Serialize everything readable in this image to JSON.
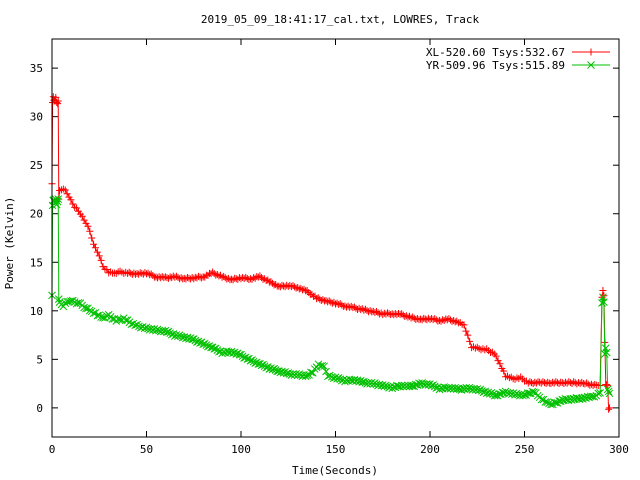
{
  "chart_data": {
    "type": "line",
    "title": "2019_05_09_18:41:17_cal.txt, LOWRES, Track",
    "xlabel": "Time(Seconds)",
    "ylabel": "Power (Kelvin)",
    "xlim": [
      0,
      300
    ],
    "ylim": [
      -3,
      38
    ],
    "xticks": [
      0,
      50,
      100,
      150,
      200,
      250,
      300
    ],
    "yticks": [
      0,
      5,
      10,
      15,
      20,
      25,
      30,
      35
    ],
    "grid": false,
    "legend_position": "top-right",
    "series": [
      {
        "name": "XL-520.60 Tsys:532.67",
        "color": "#ff0000",
        "marker": "plus",
        "x": [
          0,
          0.3,
          0.7,
          1,
          1.5,
          2,
          2.5,
          3,
          3.3,
          3.6,
          4,
          5,
          7,
          9,
          11,
          13,
          15,
          17,
          19,
          21,
          23,
          25,
          27,
          30,
          33,
          36,
          40,
          45,
          50,
          55,
          60,
          65,
          70,
          75,
          80,
          85,
          90,
          95,
          100,
          105,
          110,
          115,
          120,
          125,
          130,
          135,
          140,
          145,
          150,
          155,
          160,
          165,
          170,
          175,
          180,
          185,
          190,
          195,
          200,
          205,
          210,
          215,
          218,
          222,
          226,
          230,
          234,
          237,
          240,
          244,
          248,
          252,
          258,
          264,
          270,
          276,
          282,
          288,
          290,
          291,
          291.5,
          292,
          292.5,
          293,
          293.5,
          294,
          294.5,
          295
        ],
        "y": [
          23,
          31.5,
          32,
          31.8,
          31.6,
          31.9,
          31.5,
          31.3,
          31.7,
          21.5,
          22.3,
          22.5,
          22.4,
          21.8,
          21,
          20.5,
          20,
          19.3,
          18.8,
          17.5,
          16.4,
          15.7,
          14.5,
          14,
          13.9,
          14,
          13.9,
          13.8,
          13.9,
          13.5,
          13.4,
          13.5,
          13.3,
          13.4,
          13.5,
          13.9,
          13.5,
          13.2,
          13.4,
          13.3,
          13.5,
          13,
          12.5,
          12.6,
          12.4,
          12,
          11.3,
          11,
          10.8,
          10.5,
          10.3,
          10.1,
          9.9,
          9.7,
          9.7,
          9.6,
          9.3,
          9.1,
          9.2,
          9.0,
          9.1,
          8.8,
          8.5,
          6.3,
          6.1,
          6.0,
          5.6,
          4.5,
          3.3,
          3.0,
          3.1,
          2.6,
          2.6,
          2.6,
          2.6,
          2.6,
          2.5,
          2.3,
          2.4,
          11.4,
          12.0,
          11.6,
          6.7,
          2.5,
          2.4,
          2.2,
          -0.1,
          0
        ]
      },
      {
        "name": "YR-509.96 Tsys:515.89",
        "color": "#00c000",
        "marker": "cross",
        "x": [
          0,
          0.3,
          0.7,
          1,
          1.5,
          2,
          2.5,
          3,
          3.3,
          3.6,
          4,
          6,
          8,
          10,
          12,
          15,
          18,
          21,
          24,
          27,
          30,
          34,
          38,
          42,
          46,
          50,
          55,
          60,
          65,
          70,
          75,
          80,
          85,
          90,
          95,
          100,
          105,
          110,
          115,
          120,
          125,
          130,
          135,
          138,
          141,
          144,
          146,
          150,
          155,
          160,
          165,
          170,
          175,
          180,
          185,
          190,
          195,
          200,
          205,
          210,
          215,
          220,
          225,
          230,
          235,
          240,
          245,
          250,
          255,
          258,
          262,
          265,
          270,
          275,
          280,
          285,
          288,
          290,
          291,
          291.5,
          292,
          292.5,
          293,
          293.5,
          294,
          294.5,
          295
        ],
        "y": [
          11.5,
          20.9,
          21.3,
          21.5,
          21.1,
          21.4,
          21.0,
          21.2,
          21.6,
          11.2,
          10.8,
          10.5,
          10.9,
          11.1,
          10.9,
          10.7,
          10.3,
          9.9,
          9.6,
          9.3,
          9.5,
          9.0,
          9.2,
          8.7,
          8.4,
          8.2,
          8.0,
          7.9,
          7.5,
          7.3,
          7.0,
          6.6,
          6.2,
          5.7,
          5.8,
          5.4,
          4.9,
          4.5,
          4.1,
          3.8,
          3.5,
          3.4,
          3.3,
          3.7,
          4.5,
          4.2,
          3.3,
          3.1,
          2.8,
          2.9,
          2.6,
          2.5,
          2.3,
          2.1,
          2.3,
          2.2,
          2.5,
          2.4,
          2.0,
          2.1,
          1.9,
          2.0,
          1.9,
          1.6,
          1.3,
          1.6,
          1.4,
          1.3,
          1.7,
          1.1,
          0.5,
          0.4,
          0.8,
          0.9,
          1.0,
          1.1,
          1.3,
          1.5,
          10.9,
          11.4,
          10.8,
          5.6,
          6.1,
          5.8,
          1.9,
          1.6,
          1.5
        ]
      }
    ]
  }
}
